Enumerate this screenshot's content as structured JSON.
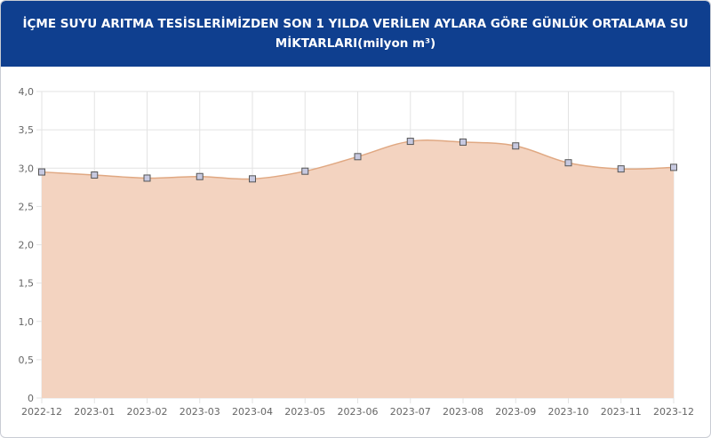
{
  "header": {
    "title_line1": "İÇME SUYU ARITMA TESİSLERİMİZDEN SON 1 YILDA VERİLEN AYLARA GÖRE GÜNLÜK ORTALAMA SU",
    "title_line2": "MİKTARLARI(milyon m³)"
  },
  "chart_data": {
    "type": "area",
    "title": "İÇME SUYU ARITMA TESİSLERİMİZDEN SON 1 YILDA VERİLEN AYLARA GÖRE GÜNLÜK ORTALAMA SU MİKTARLARI(milyon m³)",
    "categories": [
      "2022-12",
      "2023-01",
      "2023-02",
      "2023-03",
      "2023-04",
      "2023-05",
      "2023-06",
      "2023-07",
      "2023-08",
      "2023-09",
      "2023-10",
      "2023-11",
      "2023-12"
    ],
    "values": [
      2.95,
      2.91,
      2.87,
      2.89,
      2.86,
      2.96,
      3.15,
      3.35,
      3.34,
      3.29,
      3.07,
      2.99,
      3.01
    ],
    "ylim": [
      0,
      4.0
    ],
    "yticks": [
      "0",
      "0,5",
      "1,0",
      "1,5",
      "2,0",
      "2,5",
      "3,0",
      "3,5",
      "4,0"
    ],
    "grid": true,
    "colors": {
      "fill": "#f3d3c0",
      "line": "#e0a882",
      "marker_fill": "#c7c9e0",
      "marker_stroke": "#555555",
      "grid": "#e3e3e3",
      "header_bg": "#0f3f8f"
    }
  }
}
